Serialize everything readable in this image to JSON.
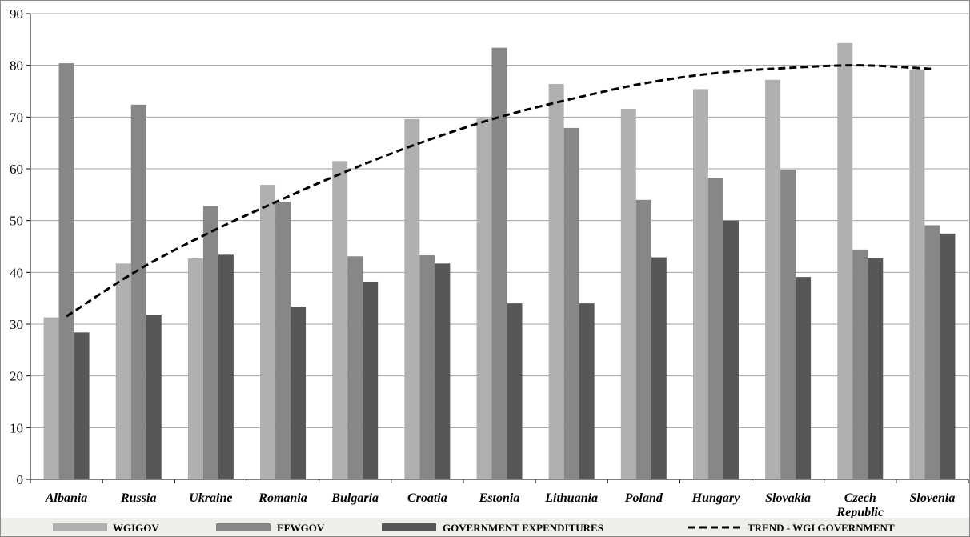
{
  "chart_data": {
    "type": "bar",
    "categories": [
      "Albania",
      "Russia",
      "Ukraine",
      "Romania",
      "Bulgaria",
      "Croatia",
      "Estonia",
      "Lithuania",
      "Poland",
      "Hungary",
      "Slovakia",
      "Czech Republic",
      "Slovenia"
    ],
    "series": [
      {
        "name": "WGIGOV",
        "type": "bar",
        "color": "#b0b0b0",
        "values": [
          31.3,
          41.7,
          42.7,
          56.9,
          61.5,
          69.6,
          69.7,
          76.4,
          71.6,
          75.4,
          77.2,
          84.3,
          79.2
        ]
      },
      {
        "name": "EFWGOV",
        "type": "bar",
        "color": "#878787",
        "values": [
          80.4,
          72.4,
          52.8,
          53.6,
          43.1,
          43.3,
          83.4,
          67.9,
          54.0,
          58.3,
          59.8,
          44.4,
          49.1
        ]
      },
      {
        "name": "GOVERNMENT EXPENDITURES",
        "type": "bar",
        "color": "#575757",
        "values": [
          28.4,
          31.8,
          43.4,
          33.4,
          38.2,
          41.7,
          34.0,
          34.0,
          42.9,
          50.0,
          39.1,
          42.7,
          47.5
        ]
      },
      {
        "name": "TREND - WGI GOVERNMENT",
        "type": "line",
        "style": "dashed",
        "color": "#000000",
        "values": [
          31.5,
          40.5,
          47.8,
          54.2,
          60.2,
          65.5,
          70.0,
          73.5,
          76.5,
          78.5,
          79.5,
          80.0,
          79.3
        ]
      }
    ],
    "ylim": [
      0,
      90
    ],
    "yticks": [
      0,
      10,
      20,
      30,
      40,
      50,
      60,
      70,
      80,
      90
    ],
    "grid": true,
    "legend": "bottom",
    "xlabel": "",
    "ylabel": "",
    "title": ""
  }
}
